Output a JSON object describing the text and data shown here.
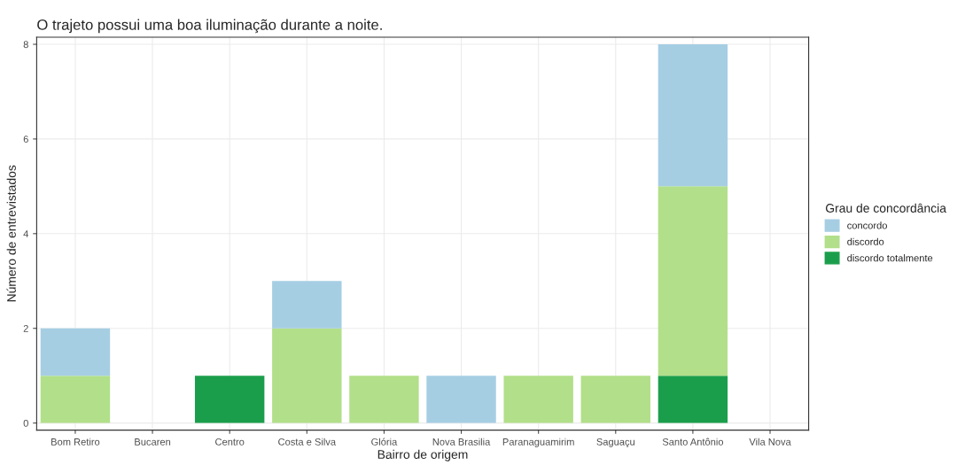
{
  "chart_data": {
    "type": "bar",
    "title": "O trajeto possui uma boa iluminação durante a noite.",
    "xlabel": "Bairro de origem",
    "ylabel": "Número de entrevistados",
    "legend_title": "Grau de concordância",
    "categories": [
      "Bom Retiro",
      "Bucaren",
      "Centro",
      "Costa e Silva",
      "Glória",
      "Nova Brasilia",
      "Paranaguamirim",
      "Saguaçu",
      "Santo Antônio",
      "Vila Nova"
    ],
    "stacked": true,
    "series": [
      {
        "name": "discordo totalmente",
        "color": "#1b9e4b",
        "values": [
          0,
          0,
          1,
          0,
          0,
          0,
          0,
          0,
          1,
          0
        ]
      },
      {
        "name": "discordo",
        "color": "#b2df8a",
        "values": [
          1,
          0,
          0,
          2,
          1,
          0,
          1,
          1,
          4,
          0
        ]
      },
      {
        "name": "concordo",
        "color": "#a6cee3",
        "values": [
          1,
          0,
          0,
          1,
          0,
          1,
          0,
          0,
          3,
          0
        ]
      }
    ],
    "ylim": [
      -0.15,
      8.15
    ],
    "yticks": [
      0,
      2,
      4,
      6,
      8
    ],
    "grid": true,
    "legend": "right"
  }
}
